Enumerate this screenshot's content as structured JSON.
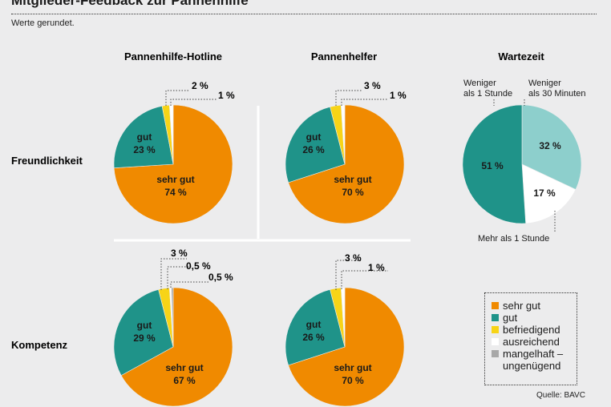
{
  "header": {
    "title": "Mitglieder-Feedback zur Pannenhilfe",
    "subtitle": "Werte gerundet."
  },
  "column_titles": [
    "Pannenhilfe-Hotline",
    "Pannenhelfer",
    "Wartezeit"
  ],
  "row_titles": [
    "Freundlichkeit",
    "Kompetenz"
  ],
  "colors": {
    "sehr_gut": "#f08a00",
    "gut": "#1f9389",
    "befriedigend": "#f7d417",
    "ausreichend": "#ffffff",
    "mangelhaft": "#a8a8a8",
    "wartezeit_lt1h": "#1f9389",
    "wartezeit_lt30": "#8dcfcc",
    "wartezeit_gt1h": "#ffffff"
  },
  "legend": [
    {
      "key": "sehr_gut",
      "label": "sehr gut"
    },
    {
      "key": "gut",
      "label": "gut"
    },
    {
      "key": "befriedigend",
      "label": "befriedigend"
    },
    {
      "key": "ausreichend",
      "label": "ausreichend"
    },
    {
      "key": "mangelhaft",
      "label": "mangelhaft –\nungenügend"
    }
  ],
  "source": "Quelle: BAVC",
  "chart_data": [
    {
      "type": "pie",
      "title": "Pannenhilfe-Hotline – Freundlichkeit",
      "slices": [
        {
          "key": "sehr_gut",
          "label": "sehr gut",
          "value": 74,
          "text": "74 %"
        },
        {
          "key": "gut",
          "label": "gut",
          "value": 23,
          "text": "23 %"
        },
        {
          "key": "befriedigend",
          "label": "",
          "value": 2,
          "text": "2 %"
        },
        {
          "key": "ausreichend",
          "label": "",
          "value": 1,
          "text": "1 %"
        }
      ]
    },
    {
      "type": "pie",
      "title": "Pannenhelfer – Freundlichkeit",
      "slices": [
        {
          "key": "sehr_gut",
          "label": "sehr gut",
          "value": 70,
          "text": "70 %"
        },
        {
          "key": "gut",
          "label": "gut",
          "value": 26,
          "text": "26 %"
        },
        {
          "key": "befriedigend",
          "label": "",
          "value": 3,
          "text": "3 %"
        },
        {
          "key": "ausreichend",
          "label": "",
          "value": 1,
          "text": "1 %"
        }
      ]
    },
    {
      "type": "pie",
      "title": "Wartezeit",
      "slices": [
        {
          "key": "wartezeit_lt30",
          "label": "Weniger als 30 Minuten",
          "value": 32,
          "text": "32 %"
        },
        {
          "key": "wartezeit_gt1h",
          "label": "Mehr als 1 Stunde",
          "value": 17,
          "text": "17 %"
        },
        {
          "key": "wartezeit_lt1h",
          "label": "Weniger als 1 Stunde",
          "value": 51,
          "text": "51 %"
        }
      ]
    },
    {
      "type": "pie",
      "title": "Pannenhilfe-Hotline – Kompetenz",
      "slices": [
        {
          "key": "sehr_gut",
          "label": "sehr gut",
          "value": 67,
          "text": "67 %"
        },
        {
          "key": "gut",
          "label": "gut",
          "value": 29,
          "text": "29 %"
        },
        {
          "key": "befriedigend",
          "label": "",
          "value": 3,
          "text": "3 %"
        },
        {
          "key": "ausreichend",
          "label": "",
          "value": 0.5,
          "text": "0,5 %"
        },
        {
          "key": "mangelhaft",
          "label": "",
          "value": 0.5,
          "text": "0,5 %"
        }
      ]
    },
    {
      "type": "pie",
      "title": "Pannenhelfer – Kompetenz",
      "slices": [
        {
          "key": "sehr_gut",
          "label": "sehr gut",
          "value": 70,
          "text": "70 %"
        },
        {
          "key": "gut",
          "label": "gut",
          "value": 26,
          "text": "26 %"
        },
        {
          "key": "befriedigend",
          "label": "",
          "value": 3,
          "text": "3 %"
        },
        {
          "key": "ausreichend",
          "label": "",
          "value": 1,
          "text": "1 %"
        }
      ]
    }
  ]
}
